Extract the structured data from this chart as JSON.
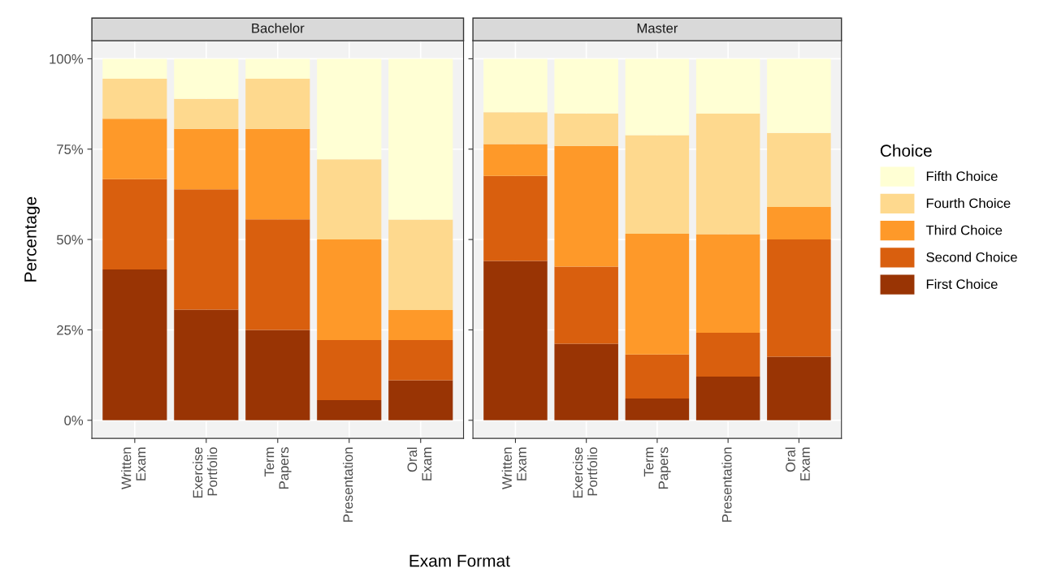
{
  "chart_data": [
    {
      "type": "bar",
      "title": "Bachelor",
      "xlabel": "Exam Format",
      "ylabel": "Percentage",
      "legend_title": "Choice",
      "stacked": true,
      "grid": true,
      "legend": "right",
      "categories": [
        "Written\nExam",
        "Exercise\nPortfolio",
        "Term\nPapers",
        "Presentation",
        "Oral\nExam"
      ],
      "ylim": [
        -5,
        105
      ],
      "yticks": [
        {
          "value": 0,
          "label": "0%"
        },
        {
          "value": 25,
          "label": "25%"
        },
        {
          "value": 50,
          "label": "50%"
        },
        {
          "value": 75,
          "label": "75%"
        },
        {
          "value": 100,
          "label": "100%"
        }
      ],
      "series": [
        {
          "name": "First Choice",
          "color": "#993404",
          "values": [
            41.7,
            30.6,
            25.0,
            5.6,
            11.1
          ]
        },
        {
          "name": "Second Choice",
          "color": "#d95f0e",
          "values": [
            25.0,
            33.3,
            30.6,
            16.6,
            11.1
          ]
        },
        {
          "name": "Third Choice",
          "color": "#fe9929",
          "values": [
            16.7,
            16.7,
            25.0,
            27.8,
            8.3
          ]
        },
        {
          "name": "Fourth Choice",
          "color": "#fed98e",
          "values": [
            11.1,
            8.3,
            13.9,
            22.2,
            25.0
          ]
        },
        {
          "name": "Fifth Choice",
          "color": "#ffffd4",
          "values": [
            5.5,
            11.1,
            5.5,
            27.8,
            44.5
          ]
        }
      ]
    },
    {
      "type": "bar",
      "title": "Master",
      "stacked": true,
      "grid": true,
      "tick_labels": "x",
      "categories": [
        "Written\nExam",
        "Exercise\nPortfolio",
        "Term\nPapers",
        "Presentation",
        "Oral\nExam"
      ],
      "ylim": [
        -5,
        105
      ],
      "yticks": [
        0,
        25,
        50,
        75,
        100
      ],
      "series": [
        {
          "color": "#993404",
          "values": [
            44.1,
            21.2,
            6.0,
            12.1,
            17.6
          ]
        },
        {
          "color": "#d95f0e",
          "values": [
            23.5,
            21.3,
            12.2,
            12.1,
            32.4
          ]
        },
        {
          "color": "#fe9929",
          "values": [
            8.8,
            33.4,
            33.4,
            27.3,
            9.0
          ]
        },
        {
          "color": "#fed98e",
          "values": [
            8.8,
            9.0,
            27.3,
            33.3,
            20.5
          ]
        },
        {
          "color": "#ffffd4",
          "values": [
            14.8,
            15.1,
            21.1,
            15.2,
            20.5
          ]
        }
      ]
    }
  ]
}
